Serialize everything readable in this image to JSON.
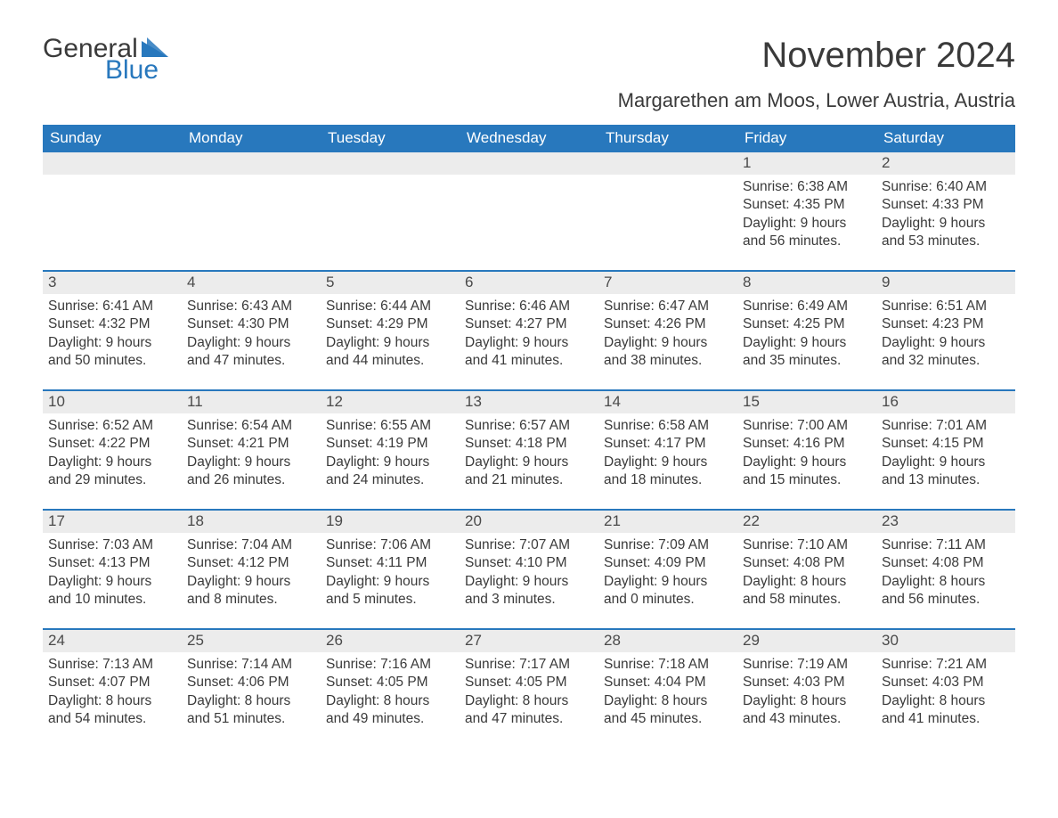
{
  "logo": {
    "text1": "General",
    "text2": "Blue",
    "accent_color": "#2878bd"
  },
  "title": "November 2024",
  "subtitle": "Margarethen am Moos, Lower Austria, Austria",
  "colors": {
    "header_bg": "#2878bd",
    "header_text": "#ffffff",
    "daynum_bg": "#ececec",
    "text": "#3a3a3a",
    "background": "#ffffff",
    "week_border": "#2878bd"
  },
  "typography": {
    "title_fontsize": 40,
    "subtitle_fontsize": 22,
    "weekday_fontsize": 17,
    "daynum_fontsize": 17,
    "body_fontsize": 15.5,
    "font_family": "Arial"
  },
  "weekdays": [
    "Sunday",
    "Monday",
    "Tuesday",
    "Wednesday",
    "Thursday",
    "Friday",
    "Saturday"
  ],
  "labels": {
    "sunrise": "Sunrise:",
    "sunset": "Sunset:",
    "daylight": "Daylight:"
  },
  "weeks": [
    [
      {
        "empty": true
      },
      {
        "empty": true
      },
      {
        "empty": true
      },
      {
        "empty": true
      },
      {
        "empty": true
      },
      {
        "n": "1",
        "sunrise": "6:38 AM",
        "sunset": "4:35 PM",
        "daylight": "9 hours and 56 minutes."
      },
      {
        "n": "2",
        "sunrise": "6:40 AM",
        "sunset": "4:33 PM",
        "daylight": "9 hours and 53 minutes."
      }
    ],
    [
      {
        "n": "3",
        "sunrise": "6:41 AM",
        "sunset": "4:32 PM",
        "daylight": "9 hours and 50 minutes."
      },
      {
        "n": "4",
        "sunrise": "6:43 AM",
        "sunset": "4:30 PM",
        "daylight": "9 hours and 47 minutes."
      },
      {
        "n": "5",
        "sunrise": "6:44 AM",
        "sunset": "4:29 PM",
        "daylight": "9 hours and 44 minutes."
      },
      {
        "n": "6",
        "sunrise": "6:46 AM",
        "sunset": "4:27 PM",
        "daylight": "9 hours and 41 minutes."
      },
      {
        "n": "7",
        "sunrise": "6:47 AM",
        "sunset": "4:26 PM",
        "daylight": "9 hours and 38 minutes."
      },
      {
        "n": "8",
        "sunrise": "6:49 AM",
        "sunset": "4:25 PM",
        "daylight": "9 hours and 35 minutes."
      },
      {
        "n": "9",
        "sunrise": "6:51 AM",
        "sunset": "4:23 PM",
        "daylight": "9 hours and 32 minutes."
      }
    ],
    [
      {
        "n": "10",
        "sunrise": "6:52 AM",
        "sunset": "4:22 PM",
        "daylight": "9 hours and 29 minutes."
      },
      {
        "n": "11",
        "sunrise": "6:54 AM",
        "sunset": "4:21 PM",
        "daylight": "9 hours and 26 minutes."
      },
      {
        "n": "12",
        "sunrise": "6:55 AM",
        "sunset": "4:19 PM",
        "daylight": "9 hours and 24 minutes."
      },
      {
        "n": "13",
        "sunrise": "6:57 AM",
        "sunset": "4:18 PM",
        "daylight": "9 hours and 21 minutes."
      },
      {
        "n": "14",
        "sunrise": "6:58 AM",
        "sunset": "4:17 PM",
        "daylight": "9 hours and 18 minutes."
      },
      {
        "n": "15",
        "sunrise": "7:00 AM",
        "sunset": "4:16 PM",
        "daylight": "9 hours and 15 minutes."
      },
      {
        "n": "16",
        "sunrise": "7:01 AM",
        "sunset": "4:15 PM",
        "daylight": "9 hours and 13 minutes."
      }
    ],
    [
      {
        "n": "17",
        "sunrise": "7:03 AM",
        "sunset": "4:13 PM",
        "daylight": "9 hours and 10 minutes."
      },
      {
        "n": "18",
        "sunrise": "7:04 AM",
        "sunset": "4:12 PM",
        "daylight": "9 hours and 8 minutes."
      },
      {
        "n": "19",
        "sunrise": "7:06 AM",
        "sunset": "4:11 PM",
        "daylight": "9 hours and 5 minutes."
      },
      {
        "n": "20",
        "sunrise": "7:07 AM",
        "sunset": "4:10 PM",
        "daylight": "9 hours and 3 minutes."
      },
      {
        "n": "21",
        "sunrise": "7:09 AM",
        "sunset": "4:09 PM",
        "daylight": "9 hours and 0 minutes."
      },
      {
        "n": "22",
        "sunrise": "7:10 AM",
        "sunset": "4:08 PM",
        "daylight": "8 hours and 58 minutes."
      },
      {
        "n": "23",
        "sunrise": "7:11 AM",
        "sunset": "4:08 PM",
        "daylight": "8 hours and 56 minutes."
      }
    ],
    [
      {
        "n": "24",
        "sunrise": "7:13 AM",
        "sunset": "4:07 PM",
        "daylight": "8 hours and 54 minutes."
      },
      {
        "n": "25",
        "sunrise": "7:14 AM",
        "sunset": "4:06 PM",
        "daylight": "8 hours and 51 minutes."
      },
      {
        "n": "26",
        "sunrise": "7:16 AM",
        "sunset": "4:05 PM",
        "daylight": "8 hours and 49 minutes."
      },
      {
        "n": "27",
        "sunrise": "7:17 AM",
        "sunset": "4:05 PM",
        "daylight": "8 hours and 47 minutes."
      },
      {
        "n": "28",
        "sunrise": "7:18 AM",
        "sunset": "4:04 PM",
        "daylight": "8 hours and 45 minutes."
      },
      {
        "n": "29",
        "sunrise": "7:19 AM",
        "sunset": "4:03 PM",
        "daylight": "8 hours and 43 minutes."
      },
      {
        "n": "30",
        "sunrise": "7:21 AM",
        "sunset": "4:03 PM",
        "daylight": "8 hours and 41 minutes."
      }
    ]
  ]
}
